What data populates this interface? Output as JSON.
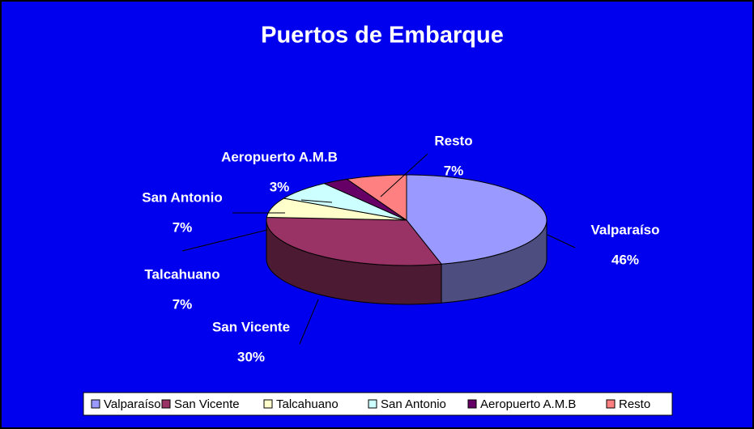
{
  "chart_data": {
    "type": "pie",
    "title": "Puertos de Embarque",
    "categories": [
      "Valparaíso",
      "San Vicente",
      "Talcahuano",
      "San Antonio",
      "Aeropuerto A.M.B",
      "Resto"
    ],
    "values": [
      46,
      30,
      7,
      7,
      3,
      7
    ],
    "value_labels": [
      "46%",
      "30%",
      "7%",
      "7%",
      "3%",
      "7%"
    ],
    "colors": [
      "#9999ff",
      "#993366",
      "#ffffcc",
      "#ccffff",
      "#660066",
      "#ff8080"
    ],
    "legend": "bottom"
  }
}
